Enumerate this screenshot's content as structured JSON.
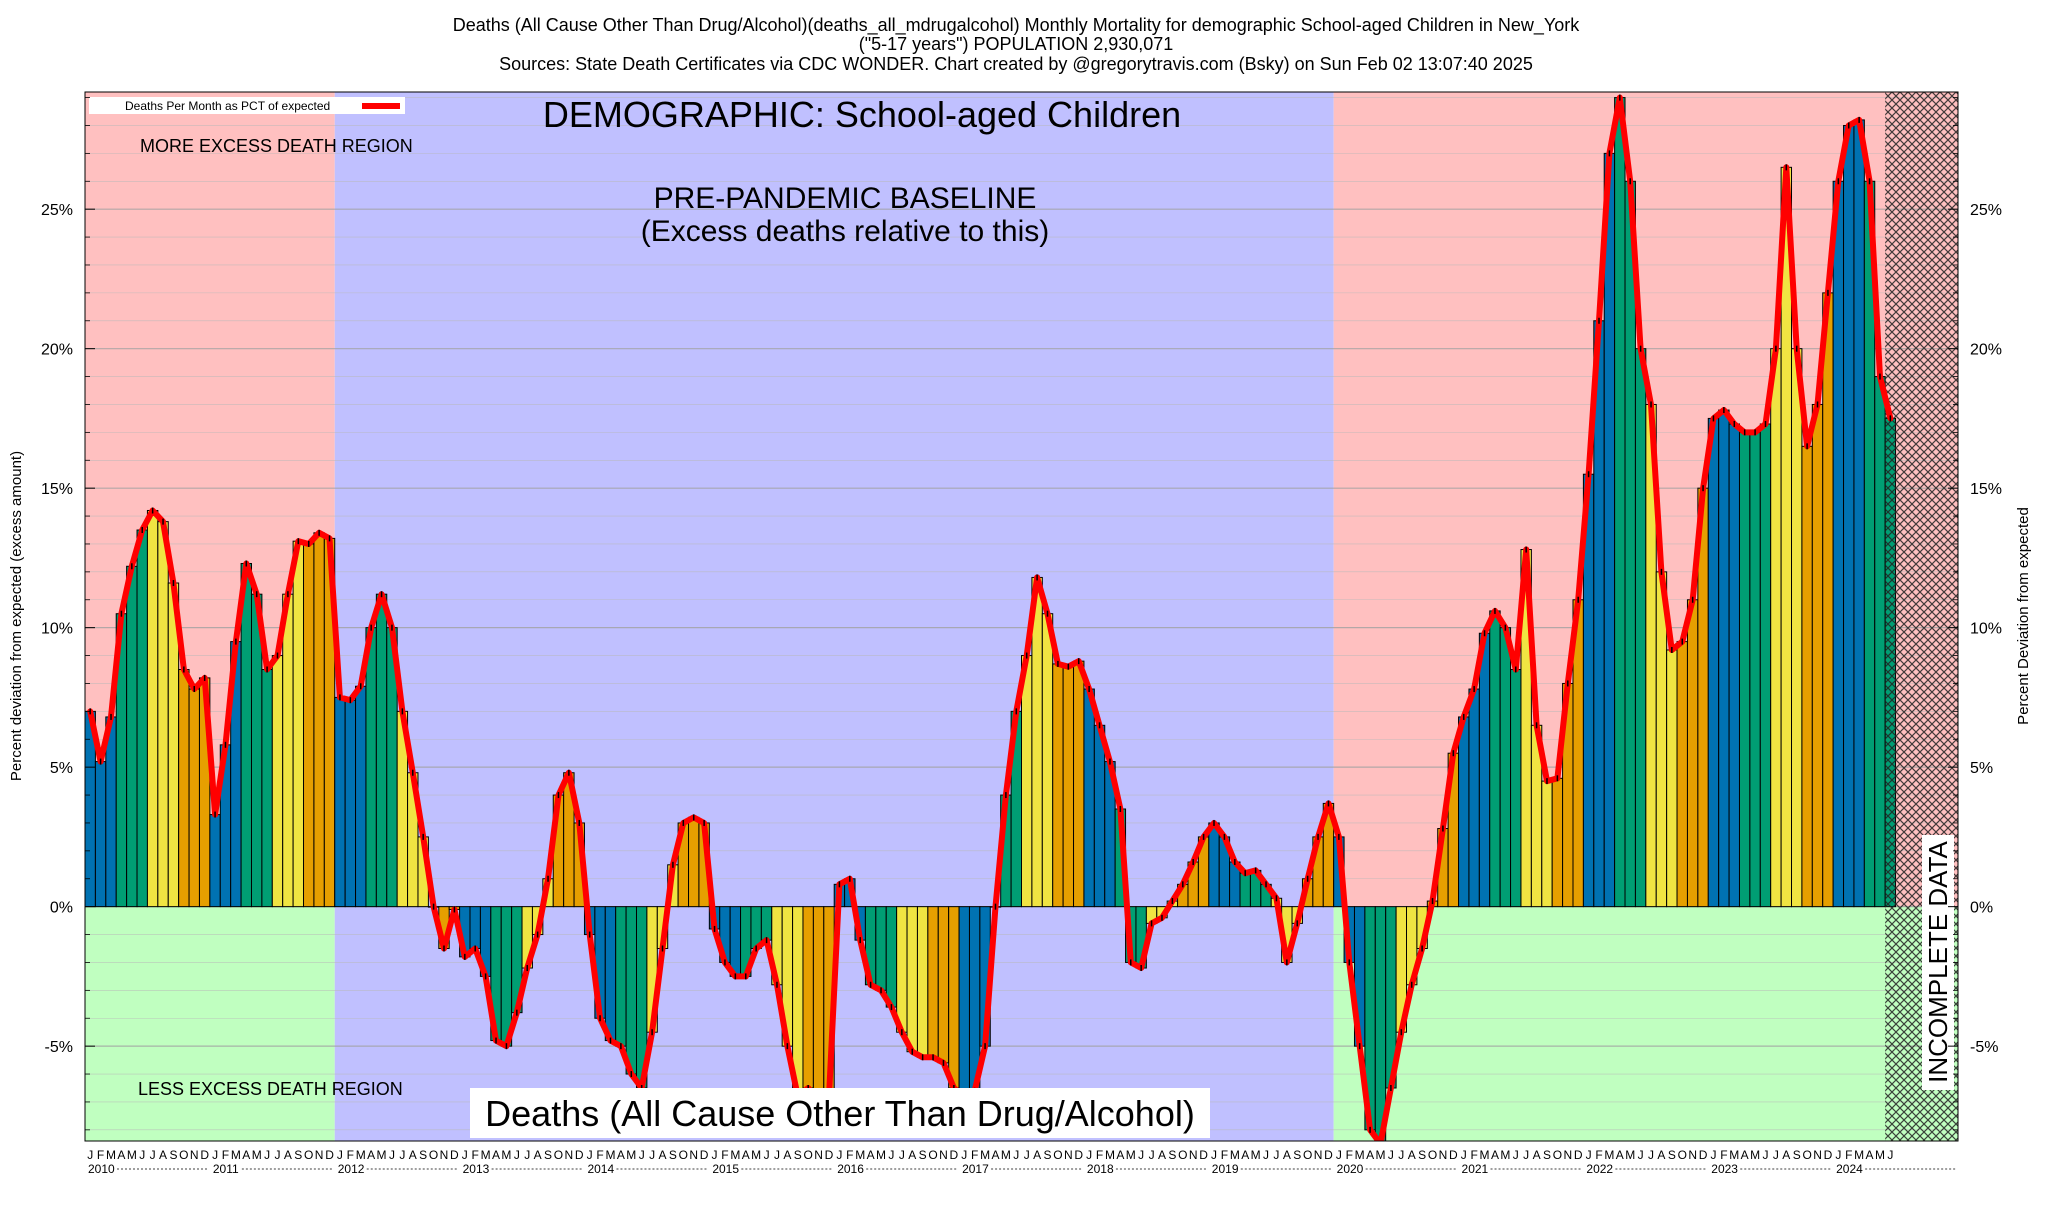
{
  "header": {
    "title_line1": "Deaths (All Cause Other Than Drug/Alcohol)(deaths_all_mdrugalcohol) Monthly Mortality for demographic School-aged Children in New_York",
    "title_line2": "(\"5-17 years\") POPULATION 2,930,071",
    "title_line3": "Sources: State Death Certificates via CDC WONDER.              Chart created by @gregorytravis.com (Bsky) on Sun Feb 02 13:07:40 2025"
  },
  "colors": {
    "excess_region": "#ffc0c0",
    "less_region": "#c0ffc0",
    "baseline_region": "#c0c0ff",
    "bar_palette": [
      "#0072b2",
      "#009e73",
      "#f0e442",
      "#e69f00"
    ],
    "line": "#ff0000",
    "incomplete_hatch": "#222222"
  },
  "chart_data": {
    "type": "bar",
    "title": "Deaths (All Cause Other Than Drug/Alcohol)(deaths_all_mdrugalcohol) Monthly Mortality for demographic School-aged Children in New_York",
    "ylabel_left": "Percent deviation from expected (excess amount)",
    "ylabel_right": "Percent Deviation from expected",
    "ylim": [
      -8.4,
      29.2
    ],
    "yticks": [
      -5,
      0,
      5,
      10,
      15,
      20,
      25
    ],
    "ytick_labels": [
      "-5%",
      "0%",
      "5%",
      "10%",
      "15%",
      "20%",
      "25%"
    ],
    "grid": true,
    "legend": {
      "label": "Deaths Per Month as PCT of expected",
      "position": "top-left"
    },
    "x_start": "2010-01",
    "month_letters": [
      "J",
      "F",
      "M",
      "A",
      "M",
      "J",
      "J",
      "A",
      "S",
      "O",
      "N",
      "D"
    ],
    "years": [
      "2010",
      "2011",
      "2012",
      "2013",
      "2014",
      "2015",
      "2016",
      "2017",
      "2018",
      "2019",
      "2020",
      "2021",
      "2022",
      "2023",
      "2024"
    ],
    "regions": [
      {
        "label": "MORE EXCESS DEATH REGION",
        "from": "2010-01",
        "to": "2011-12",
        "sign": "positive"
      },
      {
        "label": "LESS EXCESS DEATH REGION",
        "from": "2010-01",
        "to": "2011-12",
        "sign": "negative"
      },
      {
        "label": "PRE-PANDEMIC BASELINE",
        "sublabel": "(Excess deaths relative to this)",
        "from": "2012-01",
        "to": "2019-12"
      },
      {
        "label": "INCOMPLETE DATA",
        "from": "2024-06",
        "to": "2024-08"
      }
    ],
    "annotations": {
      "demographic": "DEMOGRAPHIC: School-aged Children",
      "baseline": "PRE-PANDEMIC BASELINE",
      "baseline_sub": "(Excess deaths relative to this)",
      "more_excess": "MORE EXCESS DEATH REGION",
      "less_excess": "LESS EXCESS DEATH REGION",
      "incomplete": "INCOMPLETE DATA",
      "bottom_label": "Deaths (All Cause Other Than Drug/Alcohol)"
    },
    "values": [
      7.0,
      5.2,
      6.8,
      10.5,
      12.2,
      13.5,
      14.2,
      13.8,
      11.6,
      8.5,
      7.8,
      8.2,
      3.3,
      5.8,
      9.5,
      12.3,
      11.2,
      8.5,
      9.0,
      11.2,
      13.1,
      13.0,
      13.4,
      13.2,
      7.5,
      7.4,
      7.9,
      10.0,
      11.2,
      10.0,
      7.0,
      4.8,
      2.5,
      0.0,
      -1.5,
      -0.1,
      -1.8,
      -1.5,
      -2.5,
      -4.8,
      -5.0,
      -3.8,
      -2.2,
      -1.0,
      1.0,
      4.0,
      4.8,
      3.0,
      -1.0,
      -4.0,
      -4.8,
      -5.0,
      -6.0,
      -6.5,
      -4.5,
      -1.5,
      1.5,
      3.0,
      3.2,
      3.0,
      -0.8,
      -2.0,
      -2.5,
      -2.5,
      -1.5,
      -1.2,
      -2.8,
      -5.0,
      -6.8,
      -6.5,
      -7.0,
      -6.8,
      0.8,
      1.0,
      -1.2,
      -2.8,
      -3.0,
      -3.6,
      -4.5,
      -5.2,
      -5.4,
      -5.4,
      -5.6,
      -6.5,
      -6.8,
      -6.6,
      -5.0,
      0.0,
      4.0,
      7.0,
      9.0,
      11.8,
      10.5,
      8.7,
      8.6,
      8.8,
      7.8,
      6.5,
      5.2,
      3.5,
      -2.0,
      -2.2,
      -0.6,
      -0.4,
      0.2,
      0.8,
      1.6,
      2.5,
      3.0,
      2.5,
      1.6,
      1.2,
      1.3,
      0.8,
      0.3,
      -2.0,
      -0.6,
      1.0,
      2.5,
      3.7,
      2.5,
      -2.0,
      -5.0,
      -8.0,
      -8.5,
      -6.5,
      -4.5,
      -2.8,
      -1.5,
      0.2,
      2.8,
      5.5,
      6.8,
      7.8,
      9.8,
      10.6,
      10.0,
      8.5,
      12.8,
      6.5,
      4.5,
      4.6,
      8.0,
      11.0,
      15.5,
      21.0,
      27.0,
      29.0,
      26.0,
      20.0,
      18.0,
      12.0,
      9.2,
      9.5,
      11.0,
      15.0,
      17.5,
      17.8,
      17.3,
      17.0,
      17.0,
      17.3,
      20.0,
      26.5,
      20.0,
      16.5,
      18.0,
      22.0,
      26.0,
      28.0,
      28.2,
      26.0,
      19.0,
      17.5
    ]
  }
}
